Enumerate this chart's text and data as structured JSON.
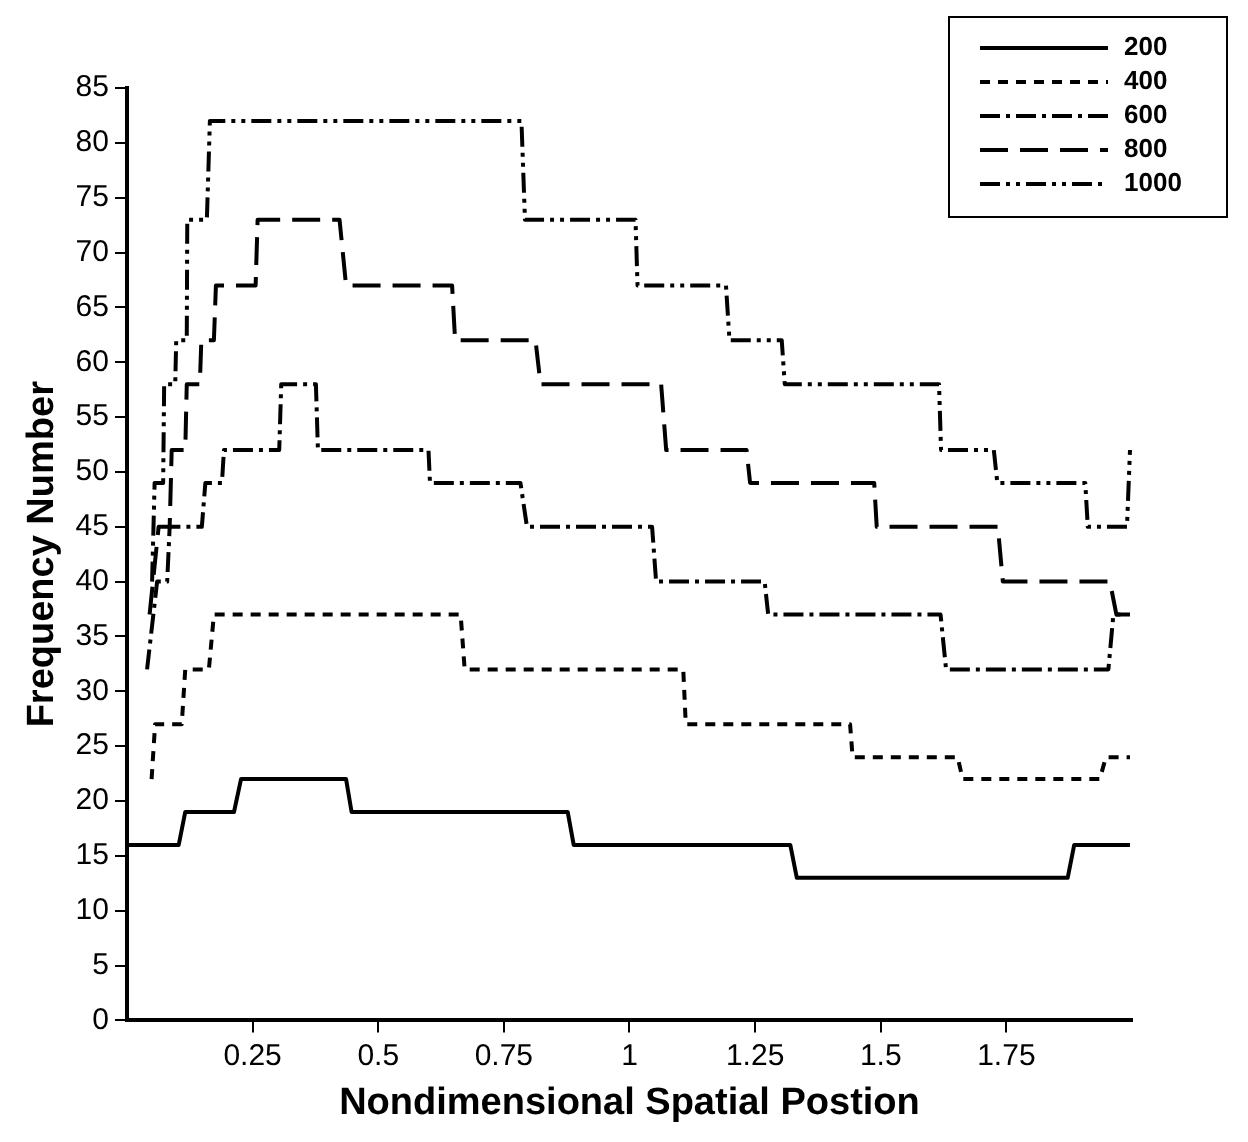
{
  "chart_data": {
    "type": "line",
    "xlabel": "Nondimensional Spatial Postion",
    "ylabel": "Frequency Number",
    "xlim": [
      0,
      2
    ],
    "xticks": [
      0.25,
      0.5,
      0.75,
      1,
      1.25,
      1.5,
      1.75
    ],
    "ylim": [
      0,
      85
    ],
    "yticks": [
      0,
      5,
      10,
      15,
      20,
      25,
      30,
      35,
      40,
      45,
      50,
      55,
      60,
      65,
      70,
      75,
      80,
      85
    ],
    "grid": false,
    "legend": "top right",
    "marker": "none",
    "series": [
      {
        "name": "200",
        "color": "#000000",
        "line_style": "solid",
        "x": [
          0.0,
          0.103,
          0.116,
          0.213,
          0.227,
          0.436,
          0.447,
          0.877,
          0.889,
          1.32,
          1.333,
          1.872,
          1.885,
          1.996
        ],
        "values": [
          16,
          16,
          19,
          19,
          22,
          22,
          19,
          19,
          16,
          16,
          13,
          13,
          16,
          16
        ]
      },
      {
        "name": "400",
        "color": "#000000",
        "line_style": "dashed",
        "x": [
          0.049,
          0.056,
          0.109,
          0.116,
          0.163,
          0.173,
          0.664,
          0.672,
          1.107,
          1.112,
          1.439,
          1.444,
          1.653,
          1.663,
          1.936,
          1.948,
          1.996
        ],
        "values": [
          22,
          27,
          27,
          32,
          32,
          37,
          37,
          32,
          32,
          27,
          27,
          24,
          24,
          22,
          22,
          24,
          24
        ]
      },
      {
        "name": "600",
        "color": "#000000",
        "line_style": "dashdot",
        "x": [
          0.04,
          0.06,
          0.08,
          0.085,
          0.149,
          0.156,
          0.189,
          0.193,
          0.303,
          0.307,
          0.376,
          0.38,
          0.6,
          0.603,
          0.783,
          0.796,
          1.045,
          1.053,
          1.269,
          1.276,
          1.619,
          1.63,
          1.953,
          1.963,
          1.996
        ],
        "values": [
          32,
          40,
          40,
          45,
          45,
          49,
          49,
          52,
          52,
          58,
          58,
          52,
          52,
          49,
          49,
          45,
          45,
          40,
          40,
          37,
          37,
          32,
          32,
          37,
          37
        ]
      },
      {
        "name": "800",
        "color": "#000000",
        "line_style": "longdash",
        "x": [
          0.045,
          0.063,
          0.085,
          0.089,
          0.116,
          0.119,
          0.145,
          0.148,
          0.173,
          0.177,
          0.256,
          0.26,
          0.423,
          0.436,
          0.647,
          0.653,
          0.813,
          0.823,
          1.063,
          1.073,
          1.233,
          1.24,
          1.487,
          1.492,
          1.733,
          1.743,
          1.956,
          1.969,
          1.996
        ],
        "values": [
          37,
          45,
          45,
          52,
          52,
          58,
          58,
          62,
          62,
          67,
          67,
          73,
          73,
          67,
          67,
          62,
          62,
          58,
          58,
          52,
          52,
          49,
          49,
          45,
          45,
          40,
          40,
          37,
          37
        ]
      },
      {
        "name": "1000",
        "color": "#000000",
        "line_style": "dashdotdot",
        "x": [
          0.05,
          0.055,
          0.072,
          0.074,
          0.096,
          0.098,
          0.119,
          0.12,
          0.159,
          0.165,
          0.785,
          0.792,
          1.012,
          1.016,
          1.192,
          1.199,
          1.303,
          1.309,
          1.616,
          1.62,
          1.725,
          1.732,
          1.907,
          1.912,
          1.99,
          1.996
        ],
        "values": [
          40,
          49,
          49,
          58,
          58,
          62,
          62,
          73,
          73,
          82,
          82,
          73,
          73,
          67,
          67,
          62,
          62,
          58,
          58,
          52,
          52,
          49,
          49,
          45,
          45,
          52
        ]
      }
    ]
  }
}
